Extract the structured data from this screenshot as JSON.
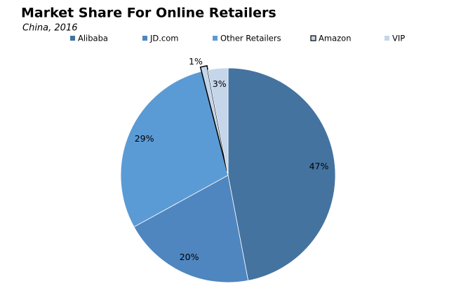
{
  "chart_data": {
    "type": "pie",
    "title": "Market Share For Online Retailers",
    "subtitle": "China, 2016",
    "categories": [
      "Alibaba",
      "JD.com",
      "Other Retailers",
      "Amazon",
      "VIP"
    ],
    "values": [
      47,
      20,
      29,
      1,
      3
    ],
    "value_labels": [
      "47%",
      "20%",
      "29%",
      "1%",
      "3%"
    ],
    "colors": [
      "#44739f",
      "#4f86c0",
      "#5b9bd5",
      "#c5d5ea",
      "#c5d5ea"
    ],
    "explode": [
      0,
      0,
      0,
      0.04,
      0
    ],
    "legend": "top"
  }
}
